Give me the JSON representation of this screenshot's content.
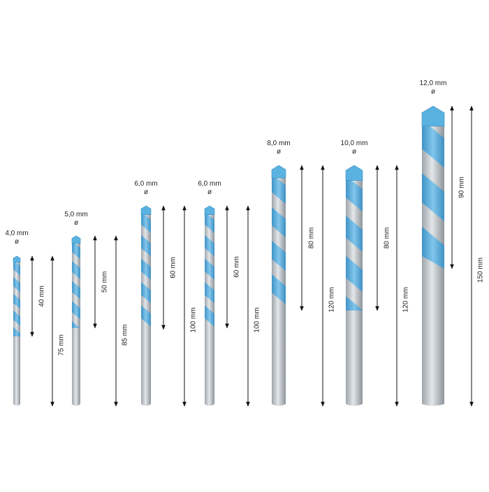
{
  "bits": [
    {
      "diameter": "4,0 mm",
      "symbol": "ø",
      "flute_length": "40 mm",
      "total_length": "75 mm"
    },
    {
      "diameter": "5,0 mm",
      "symbol": "ø",
      "flute_length": "50 mm",
      "total_length": "85 mm"
    },
    {
      "diameter": "6,0 mm",
      "symbol": "ø",
      "flute_length": "60 mm",
      "total_length": "100 mm"
    },
    {
      "diameter": "6,0 mm",
      "symbol": "ø",
      "flute_length": "60 mm",
      "total_length": "100 mm"
    },
    {
      "diameter": "8,0 mm",
      "symbol": "ø",
      "flute_length": "80 mm",
      "total_length": "120 mm"
    },
    {
      "diameter": "10,0 mm",
      "symbol": "ø",
      "flute_length": "80 mm",
      "total_length": "120 mm"
    },
    {
      "diameter": "12,0 mm",
      "symbol": "ø",
      "flute_length": "90 mm",
      "total_length": "150 mm"
    }
  ]
}
